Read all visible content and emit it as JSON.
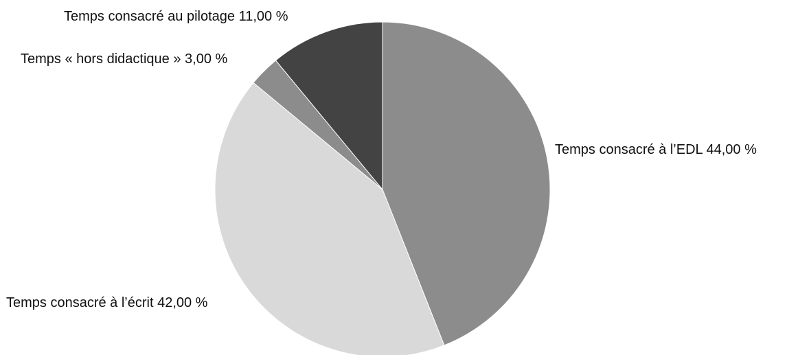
{
  "chart_data": {
    "type": "pie",
    "start_angle_deg": 0,
    "direction": "clockwise",
    "slices": [
      {
        "label": "Temps consacré à l’EDL 44,00 %",
        "value": 44.0,
        "color": "#8c8c8c"
      },
      {
        "label": "Temps consacré à l’écrit 42,00 %",
        "value": 42.0,
        "color": "#d9d9d9"
      },
      {
        "label": "Temps « hors didactique » 3,00 %",
        "value": 3.0,
        "color": "#8c8c8c"
      },
      {
        "label": "Temps consacré au pilotage 11,00 %",
        "value": 11.0,
        "color": "#434343"
      }
    ]
  }
}
